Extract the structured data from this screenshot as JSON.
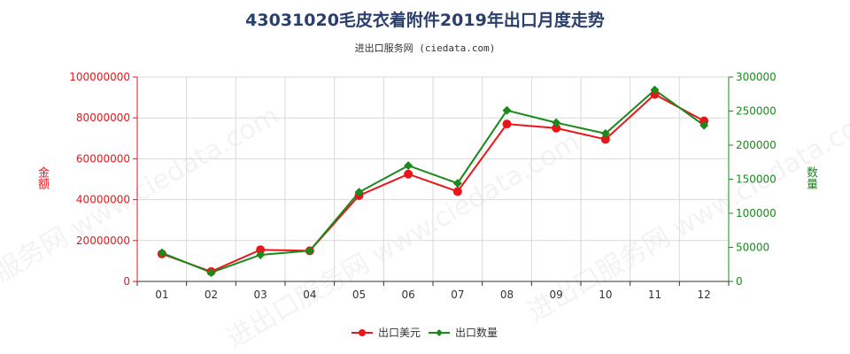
{
  "title": "43031020毛皮衣着附件2019年出口月度走势",
  "subtitle": "进出口服务网 (ciedata.com)",
  "watermark": "进出口服务网 www.ciedata.com",
  "colors": {
    "series_amount": "#e8161b",
    "series_quantity": "#1a8a1a",
    "left_axis": "#e8161b",
    "right_axis": "#1a8a1a",
    "grid": "#d9d9d9"
  },
  "chart_data": {
    "type": "line",
    "categories": [
      "01",
      "02",
      "03",
      "04",
      "05",
      "06",
      "07",
      "08",
      "09",
      "10",
      "11",
      "12"
    ],
    "series": [
      {
        "name": "出口美元",
        "axis": "left",
        "values": [
          13500000,
          4800000,
          15500000,
          15000000,
          42000000,
          52500000,
          44000000,
          77000000,
          75000000,
          69500000,
          91500000,
          78500000
        ]
      },
      {
        "name": "出口数量",
        "axis": "right",
        "values": [
          42000,
          13000,
          39000,
          45000,
          131000,
          170000,
          144000,
          251000,
          233000,
          217000,
          281000,
          229000
        ]
      }
    ],
    "ylabel_left": "金额",
    "ylabel_right": "数量",
    "ylim_left": [
      0,
      100000000
    ],
    "ylim_right": [
      0,
      300000
    ],
    "yticks_left": [
      "0",
      "20000000",
      "40000000",
      "60000000",
      "80000000",
      "100000000"
    ],
    "yticks_right": [
      "0",
      "50000",
      "100000",
      "150000",
      "200000",
      "250000",
      "300000"
    ],
    "grid": true,
    "legend_position": "bottom"
  }
}
